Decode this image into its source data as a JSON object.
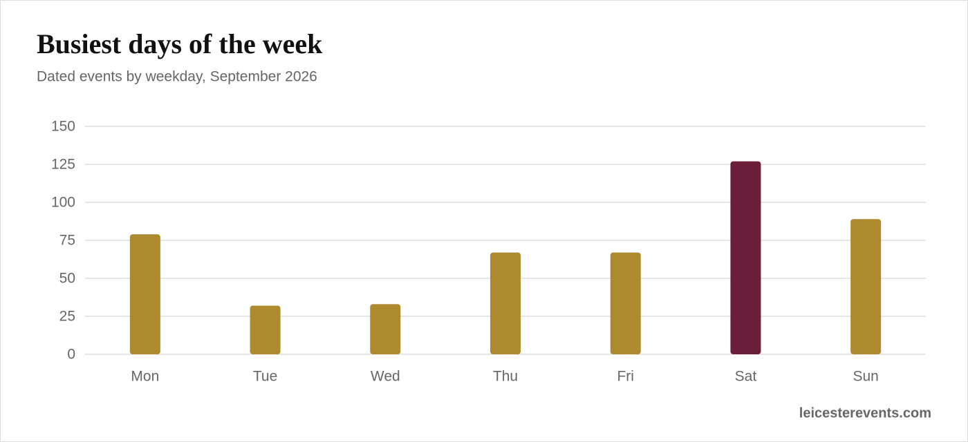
{
  "chart_data": {
    "type": "bar",
    "title": "Busiest days of the week",
    "subtitle": "Dated events by weekday, September 2026",
    "categories": [
      "Mon",
      "Tue",
      "Wed",
      "Thu",
      "Fri",
      "Sat",
      "Sun"
    ],
    "values": [
      79,
      32,
      33,
      67,
      67,
      127,
      89
    ],
    "colors": [
      "#ae8a2f",
      "#ae8a2f",
      "#ae8a2f",
      "#ae8a2f",
      "#ae8a2f",
      "#6b1f3b",
      "#ae8a2f"
    ],
    "ylim": [
      0,
      150
    ],
    "yticks": [
      0,
      25,
      50,
      75,
      100,
      125,
      150
    ],
    "grid": true,
    "source": "leicesterevents.com"
  }
}
